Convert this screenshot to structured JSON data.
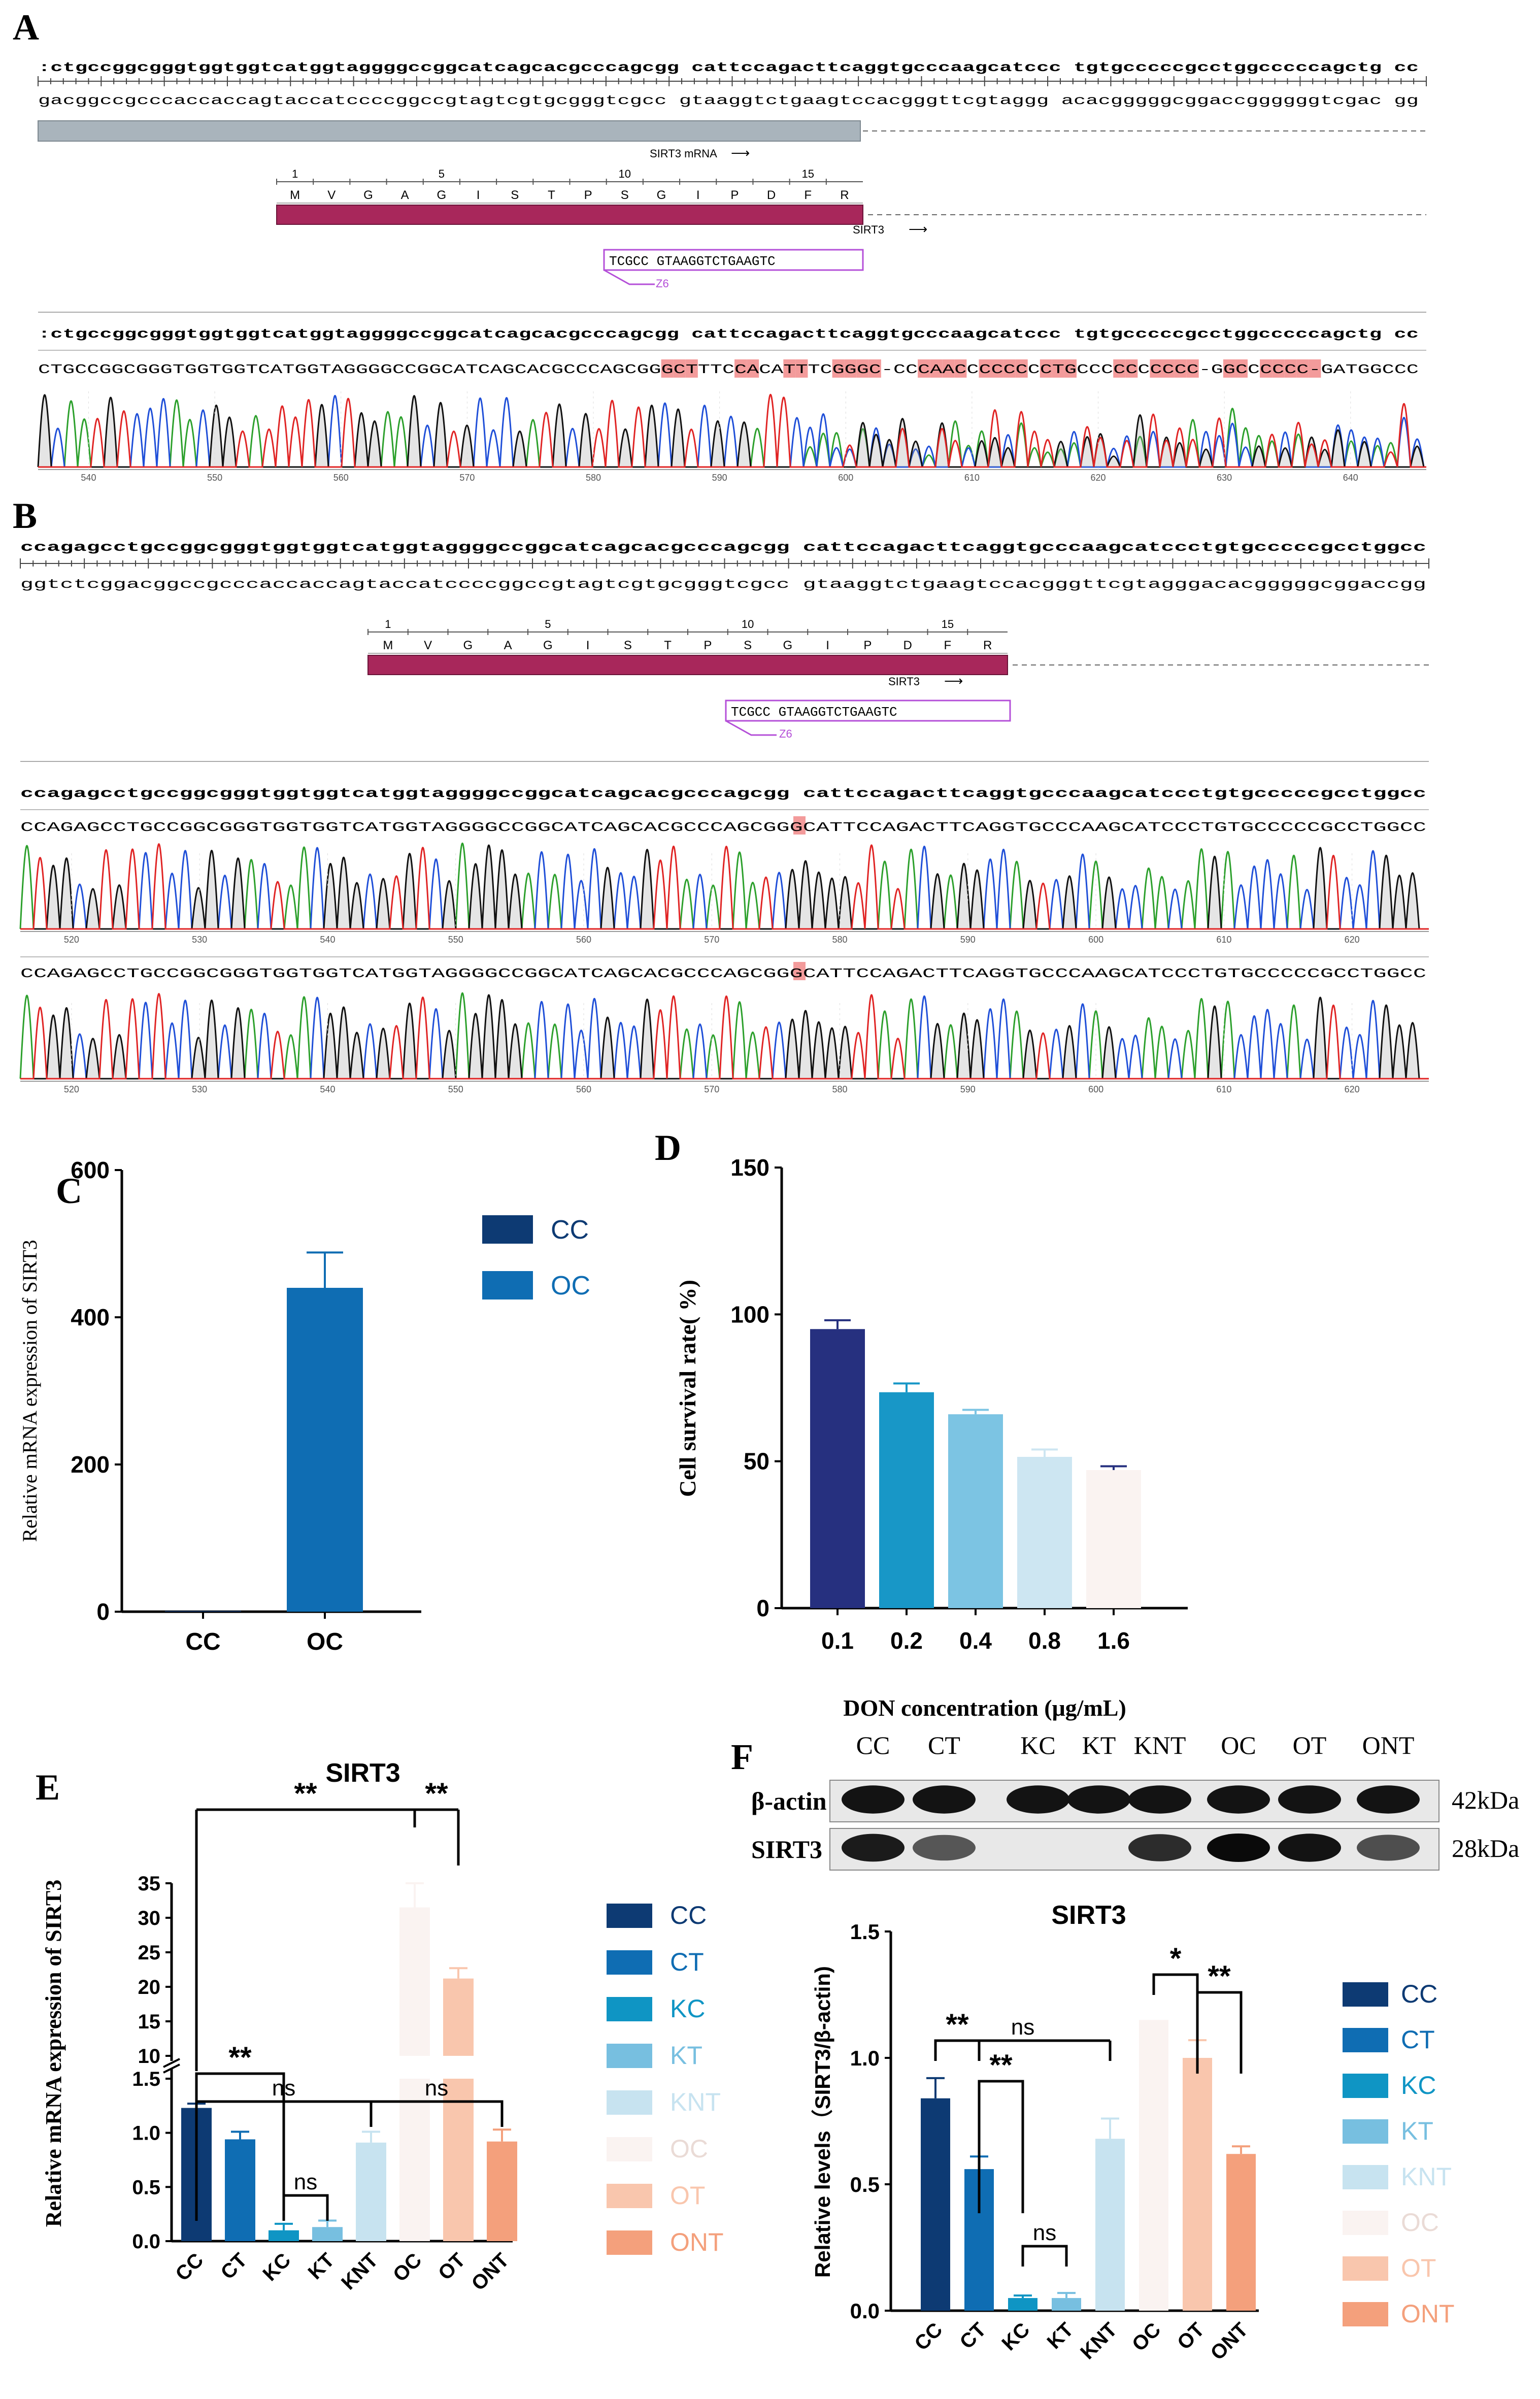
{
  "panels": {
    "a": {
      "letter": "A",
      "ref_fwd": ":ctgccggcgggtggtggtcatggtaggggccggcatcagcacgcccagcgg cattccagacttcaggtgcccaagcatccc tgtgcccccgcctggcccccagctg  cc",
      "ref_rev": "gacggccgcccaccaccagtaccatccccggccgtagtcgtgcgggtcgcc gtaaggtctgaagtccacgggttcgtaggg acacgggggcggaccggggggtcgac  gg",
      "mrna_label": "SIRT3 mRNA",
      "aa_numbers": [
        "1",
        "5",
        "10",
        "15"
      ],
      "aa_seq": [
        "M",
        "V",
        "G",
        "A",
        "G",
        "I",
        "S",
        "T",
        "P",
        "S",
        "G",
        "I",
        "P",
        "D",
        "F",
        "R"
      ],
      "gene_label": "SIRT3",
      "guide_seq": "TCGCC GTAAGGTCTGAAGTC",
      "guide_label": "Z6",
      "read_ref": ":ctgccggcgggtggtggtcatggtaggggccggcatcagcacgcccagcgg cattccagacttcaggtgcccaagcatccc tgtgcccccgcctggcccccagctg  cc",
      "read_seq": "CTGCCGGCGGGTGGTGGTCATGGTAGGGGCCGGCATCAGCACGCCCAGCGGGCTTTCCACATTTCGGGC-CCCAACCCCCCCCTGCCCCCCCCCC-GGCCCCCC-GATGGCCC",
      "axis_ticks": [
        "540",
        "550",
        "560",
        "570",
        "580",
        "590",
        "600",
        "610",
        "620",
        "630",
        "640"
      ]
    },
    "b": {
      "letter": "B",
      "ref_fwd": "ccagagcctgccggcgggtggtggtcatggtaggggccggcatcagcacgcccagcgg  cattccagacttcaggtgcccaagcatccctgtgcccccgcctggcc",
      "ref_rev": "ggtctcggacggccgcccaccaccagtaccatccccggccgtagtcgtgcgggtcgcc  gtaaggtctgaagtccacgggttcgtagggacacgggggcggaccgg",
      "aa_numbers": [
        "1",
        "5",
        "10",
        "15"
      ],
      "aa_seq": [
        "M",
        "V",
        "G",
        "A",
        "G",
        "I",
        "S",
        "T",
        "P",
        "S",
        "G",
        "I",
        "P",
        "D",
        "F",
        "R"
      ],
      "gene_label": "SIRT3",
      "guide_seq": "TCGCC GTAAGGTCTGAAGTC",
      "guide_label": "Z6",
      "read_ref": "ccagagcctgccggcgggtggtggtcatggtaggggccggcatcagcacgcccagcgg  cattccagacttcaggtgcccaagcatccctgtgcccccgcctggcc",
      "read1": "CCAGAGCCTGCCGGCGGGTGGTGGTCATGGTAGGGGCCGGCATCAGCACGCCCAGCGGGCATTCCAGACTTCAGGTGCCCAAGCATCCCTGTGCCCCCGCCTGGCC",
      "read2": "CCAGAGCCTGCCGGCGGGTGGTGGTCATGGTAGGGGCCGGCATCAGCACGCCCAGCGGGCATTCCAGACTTCAGGTGCCCAAGCATCCCTGTGCCCCCGCCTGGCC",
      "axis_ticks": [
        "520",
        "530",
        "540",
        "550",
        "560",
        "570",
        "580",
        "590",
        "600",
        "610",
        "620"
      ]
    },
    "f": {
      "letter": "F",
      "blot_lanes": [
        "CC",
        "CT",
        "KC",
        "KT",
        "KNT",
        "OC",
        "OT",
        "ONT"
      ],
      "blot_rows": [
        "β-actin",
        "SIRT3"
      ],
      "blot_kda": [
        "42kDa",
        "28kDa"
      ],
      "sirt3_band_intensity": [
        0.9,
        0.55,
        0,
        0,
        0.8,
        1.0,
        0.95,
        0.6
      ]
    }
  },
  "colors": {
    "CC": "#0d3a73",
    "CT": "#0f6db3",
    "KC": "#0f95c4",
    "KT": "#77bfe0",
    "KNT": "#c7e3f0",
    "OC": "#faf3f1",
    "OT": "#f9c6ad",
    "ONT": "#f4a07c",
    "D_bars": [
      "#26307f",
      "#1897c7",
      "#7cc4e3",
      "#cde6f2",
      "#faf3f1"
    ],
    "guide": "#b44fd8",
    "protein": "#a8275b",
    "mismatch": "#f39b9b"
  },
  "chart_data": [
    {
      "panel": "C",
      "type": "bar",
      "title": "",
      "ylabel": "Relative mRNA expression of SIRT3",
      "xlabel": "",
      "categories": [
        "CC",
        "OC"
      ],
      "values": [
        1,
        440
      ],
      "errors": [
        0,
        48
      ],
      "ylim": [
        0,
        600
      ],
      "yticks": [
        "0",
        "200",
        "400",
        "600"
      ],
      "legend": [
        {
          "name": "CC",
          "color": "#0d3a73"
        },
        {
          "name": "OC",
          "color": "#0f6db3"
        }
      ]
    },
    {
      "panel": "D",
      "type": "bar",
      "title": "",
      "ylabel": "Cell survival rate( %)",
      "xlabel": "DON concentration (μg/mL)",
      "categories": [
        "0.1",
        "0.2",
        "0.4",
        "0.8",
        "1.6"
      ],
      "values": [
        95,
        73.5,
        66,
        51.5,
        47
      ],
      "errors": [
        3,
        3,
        1.5,
        2.5,
        1.3
      ],
      "ylim": [
        0,
        150
      ],
      "yticks": [
        "0",
        "50",
        "100",
        "150"
      ]
    },
    {
      "panel": "E",
      "type": "bar",
      "title": "SIRT3",
      "ylabel": "Relative mRNA expression of  SIRT3",
      "xlabel": "",
      "categories": [
        "CC",
        "CT",
        "KC",
        "KT",
        "KNT",
        "OC",
        "OT",
        "ONT"
      ],
      "values": [
        1.23,
        0.94,
        0.1,
        0.13,
        0.91,
        31.5,
        21.2,
        0.92
      ],
      "errors": [
        0.04,
        0.07,
        0.06,
        0.06,
        0.1,
        3.5,
        1.5,
        0.11
      ],
      "axis_break": {
        "low": [
          0,
          1.5
        ],
        "high": [
          10,
          35
        ]
      },
      "yticks_low": [
        "0.0",
        "0.5",
        "1.0",
        "1.5"
      ],
      "yticks_high": [
        "10",
        "15",
        "20",
        "25",
        "30",
        "35"
      ],
      "significance": [
        {
          "label": "**",
          "from": "CC",
          "to": "OC"
        },
        {
          "label": "**",
          "from": "OC",
          "to": "OT"
        },
        {
          "label": "**",
          "from": "CC",
          "to": "KC"
        },
        {
          "label": "ns",
          "from": "KC",
          "to": "KT"
        },
        {
          "label": "ns",
          "from": "CC",
          "to": "KNT"
        },
        {
          "label": "ns",
          "from": "KNT",
          "to": "ONT"
        }
      ],
      "legend": [
        "CC",
        "CT",
        "KC",
        "KT",
        "KNT",
        "OC",
        "OT",
        "ONT"
      ]
    },
    {
      "panel": "F",
      "type": "bar",
      "title": "SIRT3",
      "ylabel": "Relative levels（SIRT3/β-actin)",
      "xlabel": "",
      "categories": [
        "CC",
        "CT",
        "KC",
        "KT",
        "KNT",
        "OC",
        "OT",
        "ONT"
      ],
      "values": [
        0.84,
        0.56,
        0.05,
        0.05,
        0.68,
        1.15,
        1.0,
        0.62
      ],
      "errors": [
        0.08,
        0.05,
        0.01,
        0.02,
        0.08,
        0.0,
        0.07,
        0.03
      ],
      "ylim": [
        0,
        1.5
      ],
      "yticks": [
        "0.0",
        "0.5",
        "1.0",
        "1.5"
      ],
      "significance": [
        {
          "label": "**",
          "from": "CC",
          "to": "CT"
        },
        {
          "label": "ns",
          "from": "CC",
          "to": "KNT"
        },
        {
          "label": "**",
          "from": "CT",
          "to": "KC"
        },
        {
          "label": "ns",
          "from": "KC",
          "to": "KT"
        },
        {
          "label": "*",
          "from": "OC",
          "to": "OT"
        },
        {
          "label": "**",
          "from": "OT",
          "to": "ONT"
        }
      ],
      "legend": [
        "CC",
        "CT",
        "KC",
        "KT",
        "KNT",
        "OC",
        "OT",
        "ONT"
      ]
    }
  ]
}
